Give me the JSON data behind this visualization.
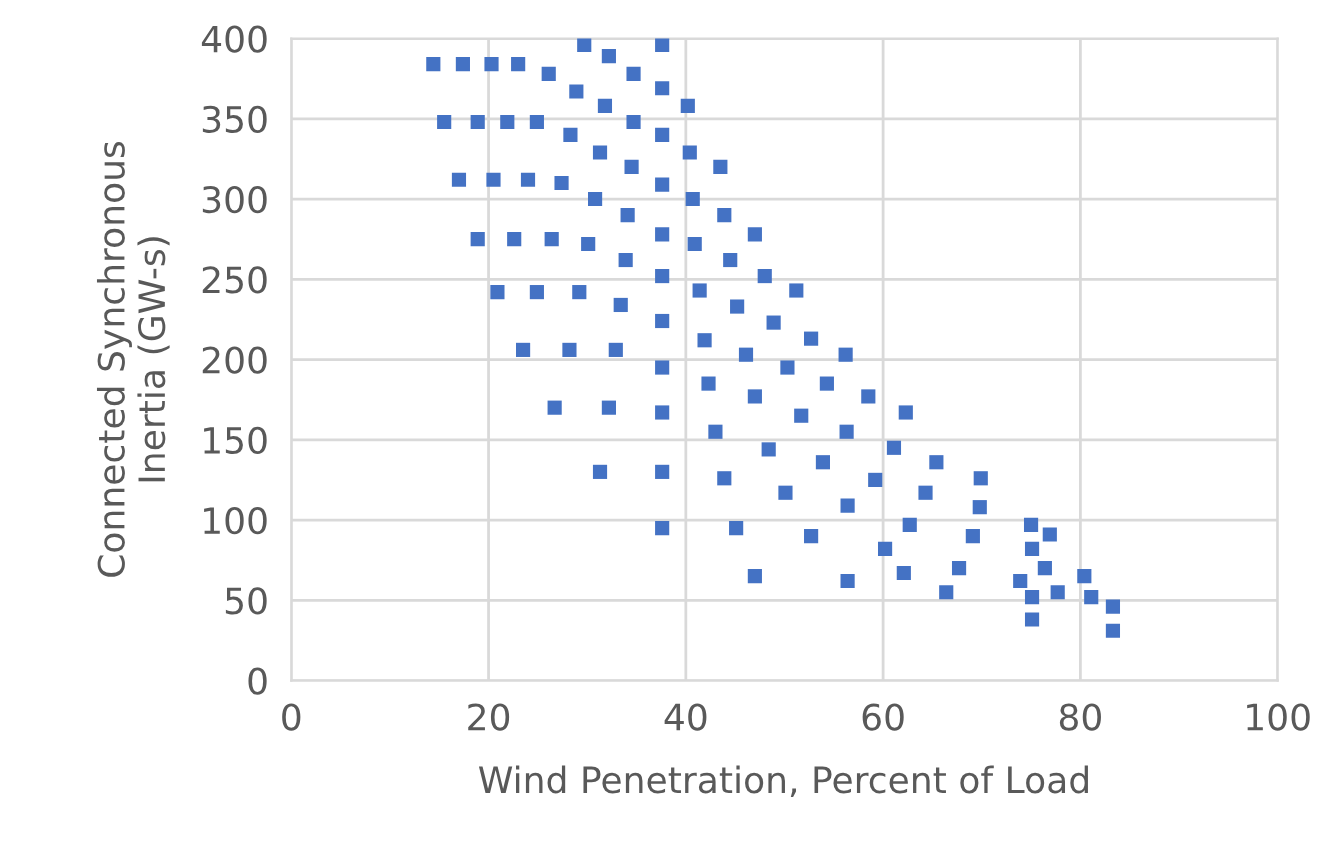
{
  "chart_data": {
    "type": "scatter",
    "xlabel": "Wind Penetration, Percent of Load",
    "ylabel": "Connected Synchronous\nInertia (GW-s)",
    "xlim": [
      0,
      100
    ],
    "ylim": [
      0,
      400
    ],
    "xticks": [
      0,
      20,
      40,
      60,
      80,
      100
    ],
    "yticks": [
      0,
      50,
      100,
      150,
      200,
      250,
      300,
      350,
      400
    ],
    "grid": true,
    "marker": "square",
    "series": [
      {
        "color": "#4472c4",
        "x": [
          14.4,
          17.4,
          20.3,
          23.0,
          26.1,
          29.7,
          32.2,
          34.7,
          28.9,
          31.8,
          34.7,
          15.5,
          18.9,
          21.9,
          24.9,
          28.3,
          31.3,
          34.5,
          17.0,
          20.5,
          24.0,
          27.4,
          30.8,
          34.1,
          18.9,
          22.6,
          26.4,
          30.1,
          33.9,
          20.9,
          24.9,
          29.2,
          33.4,
          23.5,
          28.2,
          32.9,
          37.6,
          37.6,
          40.2,
          37.6,
          40.4,
          43.5,
          37.6,
          40.7,
          43.9,
          47.0,
          37.6,
          40.9,
          44.5,
          48.0,
          51.2,
          37.6,
          41.4,
          45.2,
          48.9,
          52.7,
          56.2,
          37.6,
          41.9,
          46.1,
          37.6,
          42.3,
          47.0,
          50.3,
          54.3,
          58.5,
          62.3,
          32.2,
          37.6,
          43.0,
          48.4,
          51.7,
          53.9,
          56.3,
          61.1,
          65.4,
          31.3,
          37.6,
          43.9,
          50.1,
          56.4,
          59.2,
          64.3,
          37.6,
          45.1,
          52.7,
          60.2,
          62.7,
          47.0,
          56.4,
          62.1,
          66.4,
          69.9,
          69.8,
          69.1,
          67.7,
          75.0,
          76.9,
          75.1,
          76.4,
          73.9,
          75.1,
          77.7,
          75.1,
          80.4,
          81.1,
          83.3,
          83.3,
          26.7
        ],
        "values": [
          384,
          384,
          384,
          384,
          378,
          396,
          389,
          378,
          367,
          358,
          348,
          348,
          348,
          348,
          348,
          340,
          329,
          320,
          312,
          312,
          312,
          310,
          300,
          290,
          275,
          275,
          275,
          272,
          262,
          242,
          242,
          242,
          234,
          206,
          206,
          206,
          396,
          369,
          358,
          340,
          329,
          320,
          309,
          300,
          290,
          278,
          278,
          272,
          262,
          252,
          243,
          252,
          243,
          233,
          223,
          213,
          203,
          224,
          212,
          203,
          195,
          185,
          177,
          195,
          185,
          177,
          167,
          170,
          167,
          155,
          144,
          165,
          136,
          155,
          145,
          136,
          130,
          130,
          126,
          117,
          109,
          125,
          117,
          95,
          95,
          90,
          82,
          97,
          65,
          62,
          67,
          55,
          126,
          108,
          90,
          70,
          97,
          91,
          82,
          70,
          62,
          52,
          55,
          38,
          65,
          52,
          46,
          31,
          170
        ]
      }
    ]
  }
}
